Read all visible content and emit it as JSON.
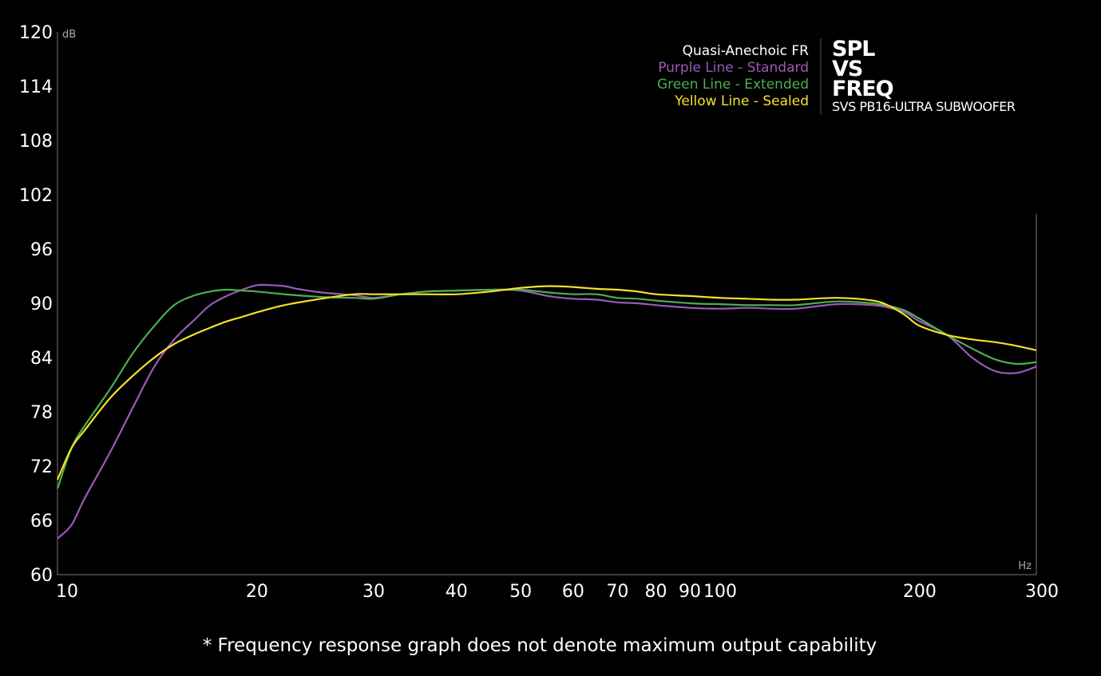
{
  "chart_data": {
    "type": "line",
    "title_lines": [
      "SPL",
      "VS",
      "FREQ"
    ],
    "subtitle": "SVS PB16-ULTRA SUBWOOFER",
    "ylabel_unit": "dB",
    "xlabel_unit": "Hz",
    "x_scale": "log",
    "xlim": [
      10,
      300
    ],
    "ylim": [
      60,
      120
    ],
    "x_ticks": [
      10,
      20,
      30,
      40,
      50,
      60,
      70,
      80,
      90,
      100,
      200,
      300
    ],
    "x_tick_labels": [
      "10",
      "20",
      "30",
      "40",
      "50",
      "60",
      "70",
      "80",
      "90",
      "100",
      "200",
      "300"
    ],
    "y_ticks": [
      120,
      114,
      108,
      102,
      96,
      90,
      84,
      78,
      72,
      66,
      60
    ],
    "y_tick_labels": [
      "120",
      "114",
      "108",
      "102",
      "96",
      "90",
      "84",
      "78",
      "72",
      "66",
      "60"
    ],
    "grid": false,
    "legend_position": "top-right",
    "legend_heading": "Quasi-Anechoic FR",
    "series": [
      {
        "name": "Purple Line - Standard",
        "color": "#9b59b6",
        "x": [
          10,
          10.5,
          11,
          12,
          13,
          14,
          15,
          16,
          17,
          18,
          19,
          20,
          21,
          22,
          23,
          25,
          28,
          30,
          33,
          36,
          40,
          45,
          50,
          55,
          60,
          65,
          70,
          75,
          80,
          90,
          100,
          110,
          120,
          130,
          150,
          170,
          180,
          190,
          200,
          220,
          240,
          260,
          280,
          300
        ],
        "y": [
          64.0,
          65.5,
          68.5,
          73.5,
          78.5,
          83.0,
          86.0,
          88.0,
          89.8,
          90.8,
          91.5,
          92.0,
          92.0,
          91.9,
          91.6,
          91.2,
          90.9,
          90.6,
          91.0,
          91.3,
          91.4,
          91.5,
          91.4,
          90.8,
          90.5,
          90.4,
          90.1,
          90.0,
          89.8,
          89.5,
          89.4,
          89.5,
          89.4,
          89.4,
          89.9,
          89.8,
          89.5,
          89.0,
          88.0,
          86.5,
          84.0,
          82.5,
          82.3,
          83.0
        ]
      },
      {
        "name": "Green Line - Extended",
        "color": "#4caf50",
        "x": [
          10,
          10.5,
          11,
          12,
          13,
          14,
          15,
          16,
          17,
          18,
          19,
          20,
          22,
          25,
          28,
          30,
          33,
          36,
          40,
          45,
          50,
          55,
          60,
          65,
          70,
          75,
          80,
          90,
          100,
          110,
          120,
          130,
          150,
          170,
          180,
          190,
          200,
          220,
          240,
          260,
          280,
          300
        ],
        "y": [
          69.5,
          74.0,
          76.5,
          80.5,
          84.5,
          87.5,
          89.8,
          90.8,
          91.3,
          91.5,
          91.4,
          91.3,
          91.0,
          90.7,
          90.6,
          90.5,
          91.0,
          91.3,
          91.4,
          91.5,
          91.5,
          91.2,
          91.0,
          91.0,
          90.6,
          90.5,
          90.3,
          90.0,
          89.9,
          89.8,
          89.8,
          89.8,
          90.2,
          90.0,
          89.7,
          89.2,
          88.3,
          86.5,
          85.0,
          83.8,
          83.3,
          83.5
        ]
      },
      {
        "name": "Yellow Line - Sealed",
        "color": "#f5e12a",
        "x": [
          10,
          10.5,
          11,
          12,
          13,
          14,
          15,
          16,
          17,
          18,
          19,
          20,
          22,
          25,
          28,
          30,
          33,
          36,
          40,
          45,
          50,
          55,
          60,
          65,
          70,
          75,
          80,
          90,
          100,
          110,
          120,
          130,
          150,
          170,
          180,
          190,
          200,
          220,
          240,
          260,
          280,
          300
        ],
        "y": [
          70.5,
          74.0,
          76.0,
          79.5,
          82.0,
          84.0,
          85.5,
          86.5,
          87.3,
          88.0,
          88.5,
          89.0,
          89.8,
          90.5,
          91.0,
          91.0,
          91.0,
          91.0,
          91.0,
          91.3,
          91.7,
          91.9,
          91.8,
          91.6,
          91.5,
          91.3,
          91.0,
          90.8,
          90.6,
          90.5,
          90.4,
          90.4,
          90.6,
          90.3,
          89.7,
          88.7,
          87.5,
          86.5,
          86.0,
          85.7,
          85.3,
          84.8
        ]
      }
    ]
  },
  "footnote": "* Frequency response graph does not denote maximum output capability"
}
